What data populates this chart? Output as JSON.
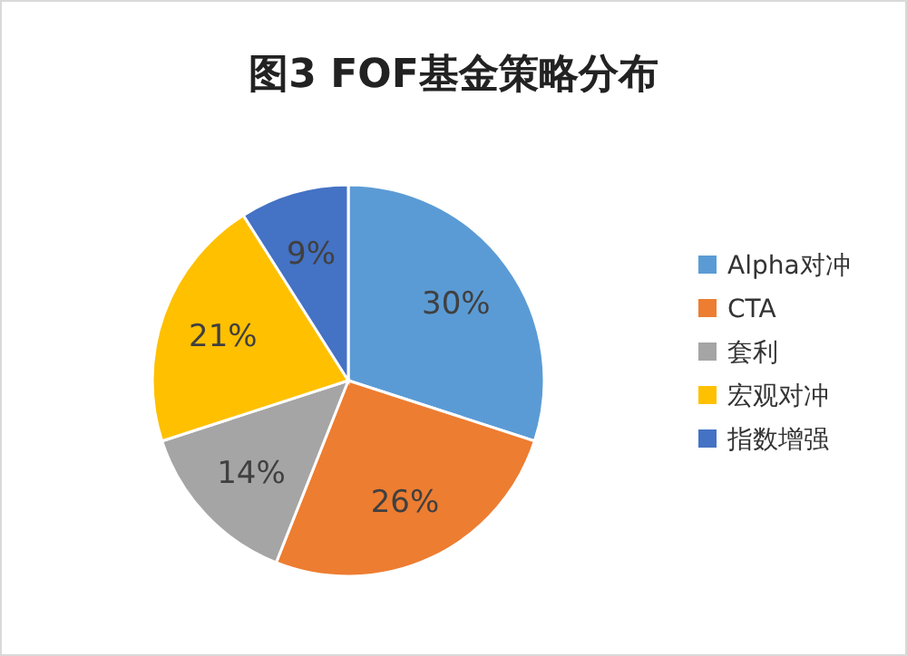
{
  "chart_data": {
    "type": "pie",
    "title": "图3   FOF基金策略分布",
    "categories": [
      "Alpha对冲",
      "CTA",
      "套利",
      "宏观对冲",
      "指数增强"
    ],
    "values": [
      30,
      26,
      14,
      21,
      9
    ],
    "colors": [
      "#5b9bd5",
      "#ed7d31",
      "#a5a5a5",
      "#ffc000",
      "#4472c4"
    ],
    "value_labels": [
      "30%",
      "26%",
      "14%",
      "21%",
      "9%"
    ],
    "legend": "right"
  }
}
